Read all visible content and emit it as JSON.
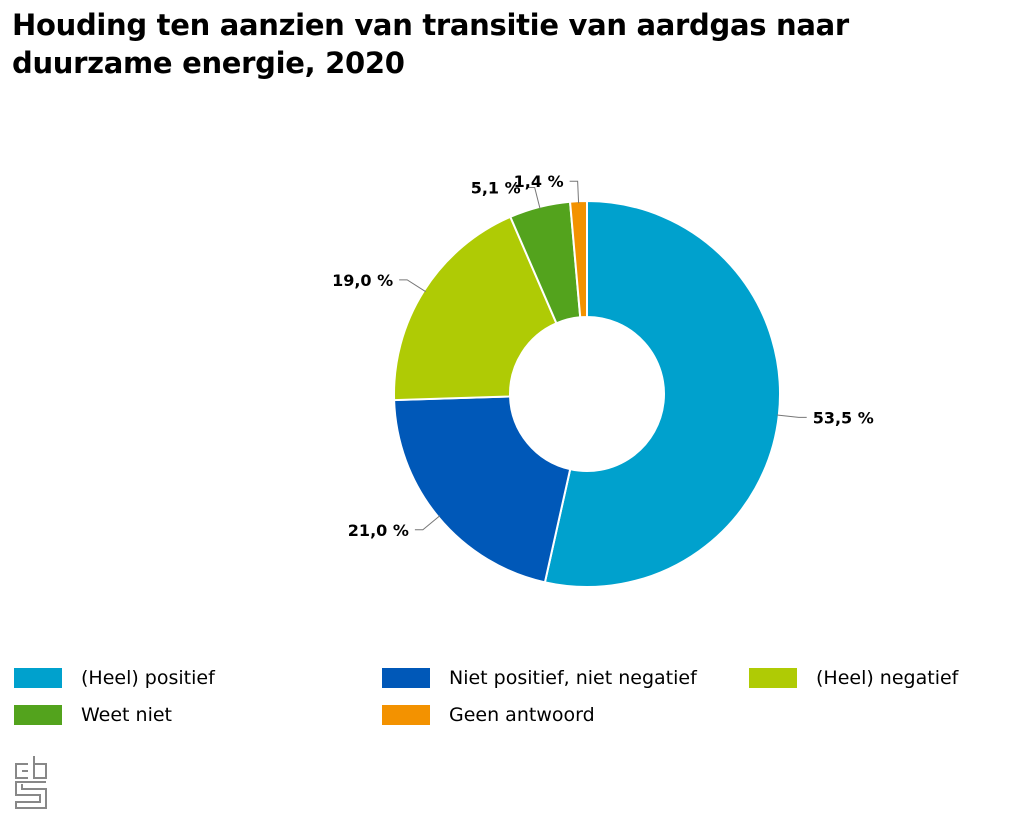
{
  "title": "Houding ten aanzien van transitie van aardgas naar duurzame energie, 2020",
  "chart_data": {
    "type": "pie",
    "donut": true,
    "title": "Houding ten aanzien van transitie van aardgas naar duurzame energie, 2020",
    "categories": [
      "(Heel) positief",
      "Niet positief, niet negatief",
      "(Heel) negatief",
      "Weet niet",
      "Geen antwoord"
    ],
    "values": [
      53.5,
      21.0,
      19.0,
      5.1,
      1.4
    ],
    "labels": [
      "53,5 %",
      "21,0 %",
      "19,0 %",
      "5,1 %",
      "1,4 %"
    ],
    "colors": [
      "#00a1cd",
      "#0058b8",
      "#afcb05",
      "#53a31d",
      "#f39200"
    ],
    "legend_position": "bottom"
  },
  "logo": "cbs"
}
